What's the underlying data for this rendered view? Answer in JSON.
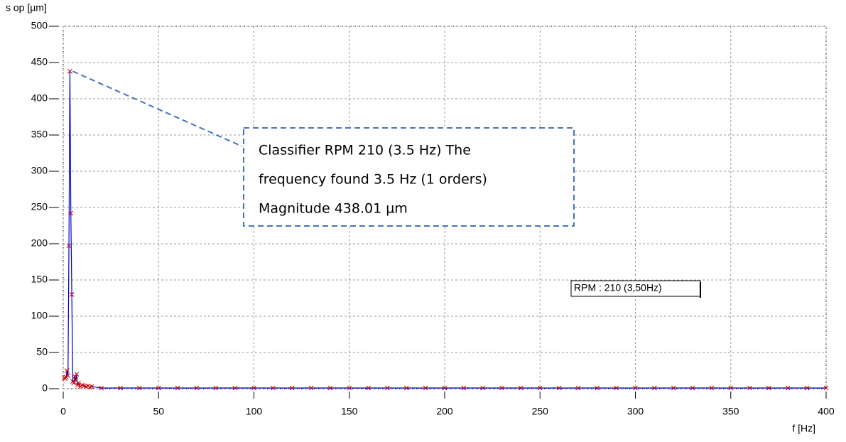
{
  "chart_data": {
    "type": "line",
    "y_label": "s op [µm]",
    "x_label": "f [Hz]",
    "x": [
      0.5,
      1,
      1.5,
      2,
      2.5,
      3,
      3.5,
      4,
      4.5,
      5,
      5.5,
      6,
      6.5,
      7,
      7.5,
      8,
      9,
      10,
      11,
      12,
      13,
      14,
      15,
      20,
      30,
      40,
      50,
      60,
      70,
      80,
      90,
      100,
      110,
      120,
      130,
      140,
      150,
      160,
      170,
      180,
      190,
      200,
      210,
      220,
      230,
      240,
      250,
      260,
      270,
      280,
      290,
      300,
      310,
      320,
      330,
      340,
      350,
      360,
      370,
      380,
      390,
      400
    ],
    "values": [
      15,
      14,
      16,
      25,
      18,
      197,
      438.01,
      242,
      130,
      10,
      8,
      17,
      12,
      20,
      5,
      8,
      3,
      5,
      4,
      3,
      4,
      2,
      3,
      1,
      1,
      1,
      1,
      1,
      1,
      1,
      1,
      1,
      1,
      1,
      1,
      1,
      1,
      1,
      1,
      1,
      1,
      1,
      1,
      1,
      1,
      1,
      1,
      1,
      1,
      1,
      1,
      1,
      1,
      1,
      1,
      1,
      1,
      1,
      1,
      1,
      1,
      1
    ],
    "line_color": "#0000cc",
    "marker_color": "#cc0000",
    "xlim": [
      0,
      400
    ],
    "xticks": [
      0,
      50,
      100,
      150,
      200,
      250,
      300,
      350,
      400
    ],
    "ylim": [
      0,
      500
    ],
    "yticks": [
      0,
      50,
      100,
      150,
      200,
      250,
      300,
      350,
      400,
      450,
      500
    ],
    "grid": true,
    "callout": [
      "Classifier RPM 210 (3.5 Hz)  The",
      "frequency found 3.5 Hz (1 orders)",
      "Magnitude 438.01 µm"
    ],
    "marker_label": "RPM : 210 (3,50Hz)"
  }
}
